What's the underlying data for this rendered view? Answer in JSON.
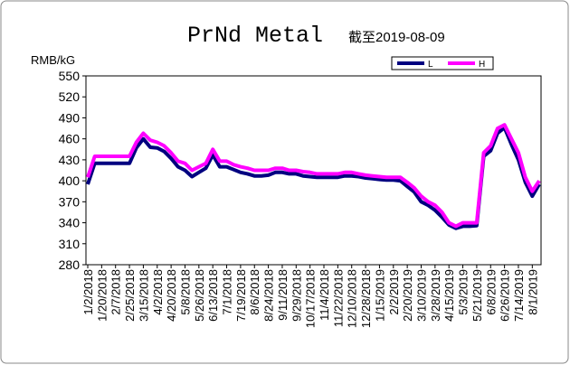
{
  "chart_data": {
    "type": "line",
    "title": "PrNd Metal",
    "subtitle": "截至2019-08-09",
    "y_label": "RMB/kG",
    "categories": [
      "1/2/2018",
      null,
      "1/20/2018",
      null,
      "2/7/2018",
      null,
      "2/25/2018",
      null,
      "3/15/2018",
      null,
      "4/2/2018",
      null,
      "4/20/2018",
      null,
      "5/8/2018",
      null,
      "5/26/2018",
      null,
      "6/13/2018",
      null,
      "7/1/2018",
      null,
      "7/19/2018",
      null,
      "8/6/2018",
      null,
      "8/24/2018",
      null,
      "9/11/2018",
      null,
      "9/29/2018",
      null,
      "10/17/2018",
      null,
      "11/4/2018",
      null,
      "11/22/2018",
      null,
      "12/10/2018",
      null,
      "12/28/2018",
      null,
      "1/15/2019",
      null,
      "2/2/2019",
      null,
      "2/20/2019",
      null,
      "3/10/2019",
      null,
      "3/28/2019",
      null,
      "4/15/2019",
      null,
      "5/3/2019",
      null,
      "5/21/2019",
      null,
      "6/8/2019",
      null,
      "6/26/2019",
      null,
      "7/14/2019",
      null,
      "8/1/2019",
      null
    ],
    "series": [
      {
        "name": "L",
        "color": "#000080",
        "values": [
          395,
          425,
          425,
          425,
          425,
          425,
          425,
          447,
          460,
          448,
          447,
          442,
          432,
          420,
          415,
          406,
          412,
          418,
          437,
          420,
          420,
          416,
          412,
          410,
          407,
          407,
          408,
          412,
          412,
          410,
          410,
          407,
          406,
          405,
          405,
          405,
          405,
          407,
          407,
          406,
          404,
          403,
          402,
          401,
          401,
          400,
          392,
          384,
          370,
          365,
          358,
          348,
          337,
          332,
          335,
          335,
          336,
          435,
          443,
          468,
          476,
          452,
          430,
          398,
          378,
          395
        ]
      },
      {
        "name": "H",
        "color": "#ff00ff",
        "values": [
          405,
          435,
          435,
          435,
          435,
          435,
          435,
          455,
          468,
          458,
          455,
          450,
          440,
          428,
          425,
          415,
          420,
          425,
          445,
          428,
          428,
          423,
          420,
          418,
          415,
          415,
          415,
          418,
          418,
          415,
          415,
          413,
          412,
          410,
          410,
          410,
          410,
          412,
          412,
          410,
          408,
          407,
          406,
          405,
          405,
          405,
          398,
          390,
          378,
          370,
          365,
          355,
          340,
          335,
          340,
          340,
          340,
          440,
          450,
          475,
          480,
          460,
          440,
          405,
          385,
          400
        ]
      }
    ],
    "ylim": [
      280,
      550
    ],
    "yticks": [
      280,
      310,
      340,
      370,
      400,
      430,
      460,
      490,
      520,
      550
    ],
    "legend": "top-right",
    "grid": false
  }
}
